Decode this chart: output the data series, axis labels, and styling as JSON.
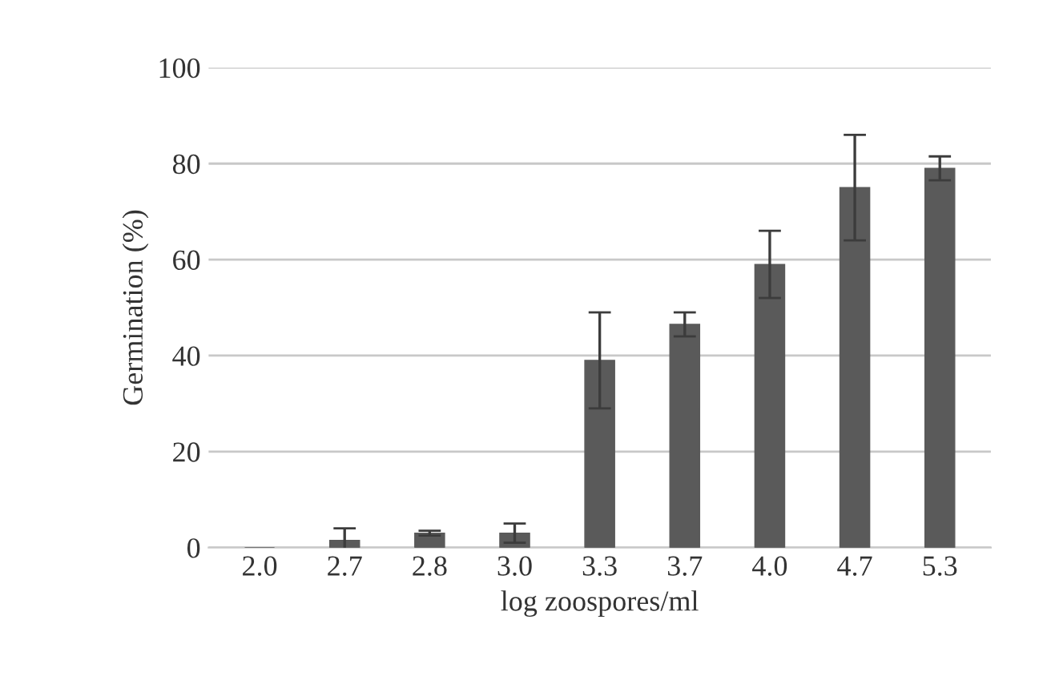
{
  "chart_data": {
    "type": "bar",
    "xlabel": "log zoospores/ml",
    "ylabel": "Germination (%)",
    "categories": [
      "2.0",
      "2.7",
      "2.8",
      "3.0",
      "3.3",
      "3.7",
      "4.0",
      "4.7",
      "5.3"
    ],
    "values": [
      0,
      1.5,
      3,
      3,
      39,
      46.5,
      59,
      75,
      79
    ],
    "errors": [
      null,
      2.5,
      0.5,
      2,
      10,
      2.5,
      7,
      11,
      2.5
    ],
    "color": "#5a5a5a",
    "ylim": [
      0,
      100
    ],
    "yticks": [
      0,
      20,
      40,
      60,
      80,
      100
    ],
    "grid": "y"
  }
}
